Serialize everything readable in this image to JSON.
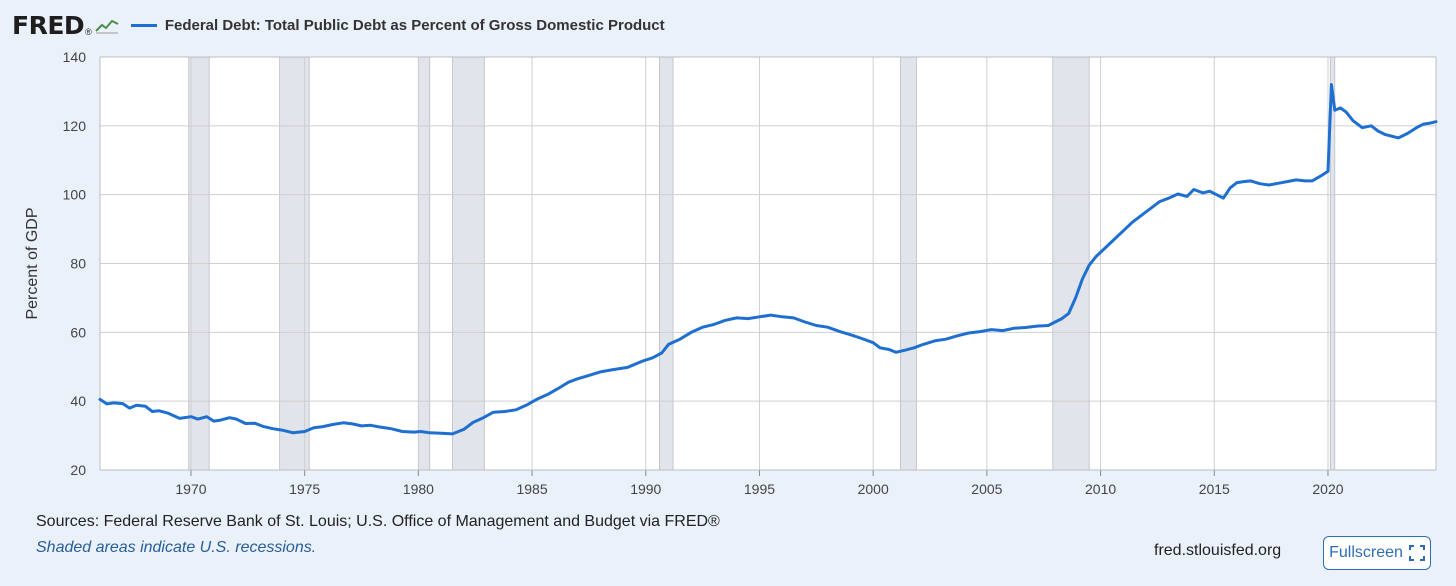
{
  "header": {
    "logo_text": "FRED",
    "logo_mark": "®",
    "legend_label": "Federal Debt: Total Public Debt as Percent of Gross Domestic Product"
  },
  "footer": {
    "sources": "Sources: Federal Reserve Bank of St. Louis; U.S. Office of Management and Budget via FRED®",
    "note": "Shaded areas indicate U.S. recessions.",
    "site": "fred.stlouisfed.org",
    "fullscreen_label": "Fullscreen",
    "fullscreen_icon": "expand-icon"
  },
  "colors": {
    "series": "#1f6fd1",
    "recession": "#e1e4ea",
    "grid": "#cfcfcf",
    "plot_bg": "#ffffff",
    "page_bg": "#eaf1fa"
  },
  "chart_data": {
    "type": "line",
    "title": "Federal Debt: Total Public Debt as Percent of Gross Domestic Product",
    "ylabel": "Percent of GDP",
    "xlabel": "",
    "xlim": [
      1966,
      2024.75
    ],
    "ylim": [
      20,
      140
    ],
    "yticks": [
      20,
      40,
      60,
      80,
      100,
      120,
      140
    ],
    "xticks": [
      1970,
      1975,
      1980,
      1985,
      1990,
      1995,
      2000,
      2005,
      2010,
      2015,
      2020
    ],
    "grid": true,
    "recessions": [
      [
        1969.9,
        1970.8
      ],
      [
        1973.9,
        1975.2
      ],
      [
        1980.0,
        1980.5
      ],
      [
        1981.5,
        1982.9
      ],
      [
        1990.6,
        1991.2
      ],
      [
        2001.2,
        2001.9
      ],
      [
        2007.9,
        2009.5
      ],
      [
        2020.1,
        2020.3
      ]
    ],
    "series": [
      {
        "name": "Federal Debt: Total Public Debt as Percent of Gross Domestic Product",
        "x": [
          1966.0,
          1966.3,
          1966.6,
          1967.0,
          1967.3,
          1967.6,
          1968.0,
          1968.3,
          1968.6,
          1969.0,
          1969.5,
          1970.0,
          1970.3,
          1970.7,
          1971.0,
          1971.3,
          1971.7,
          1972.0,
          1972.4,
          1972.8,
          1973.2,
          1973.6,
          1974.0,
          1974.5,
          1975.0,
          1975.4,
          1975.8,
          1976.2,
          1976.7,
          1977.1,
          1977.5,
          1977.9,
          1978.3,
          1978.8,
          1979.3,
          1979.8,
          1980.1,
          1980.5,
          1981.0,
          1981.5,
          1982.0,
          1982.4,
          1982.8,
          1983.3,
          1983.8,
          1984.3,
          1984.8,
          1985.2,
          1985.7,
          1986.1,
          1986.6,
          1987.0,
          1987.5,
          1988.0,
          1988.6,
          1989.2,
          1989.8,
          1990.3,
          1990.7,
          1991.0,
          1991.5,
          1992.0,
          1992.5,
          1993.0,
          1993.5,
          1994.0,
          1994.5,
          1995.0,
          1995.5,
          1996.0,
          1996.5,
          1997.0,
          1997.5,
          1998.0,
          1998.5,
          1999.0,
          1999.5,
          2000.0,
          2000.3,
          2000.7,
          2001.0,
          2001.4,
          2001.8,
          2002.2,
          2002.7,
          2003.2,
          2003.7,
          2004.2,
          2004.7,
          2005.2,
          2005.7,
          2006.2,
          2006.7,
          2007.2,
          2007.7,
          2008.0,
          2008.3,
          2008.6,
          2008.9,
          2009.2,
          2009.5,
          2009.8,
          2010.2,
          2010.6,
          2011.0,
          2011.4,
          2011.8,
          2012.2,
          2012.6,
          2013.0,
          2013.4,
          2013.8,
          2014.1,
          2014.5,
          2014.8,
          2015.1,
          2015.4,
          2015.7,
          2016.0,
          2016.3,
          2016.6,
          2017.0,
          2017.4,
          2017.8,
          2018.2,
          2018.6,
          2019.0,
          2019.3,
          2019.7,
          2020.0,
          2020.15,
          2020.3,
          2020.55,
          2020.8,
          2021.1,
          2021.5,
          2021.9,
          2022.2,
          2022.5,
          2022.8,
          2023.1,
          2023.5,
          2023.9,
          2024.2,
          2024.5,
          2024.75
        ],
        "y": [
          40.5,
          39.2,
          39.5,
          39.3,
          38.0,
          38.8,
          38.5,
          37.0,
          37.2,
          36.5,
          35.0,
          35.5,
          34.8,
          35.5,
          34.2,
          34.5,
          35.2,
          34.8,
          33.5,
          33.6,
          32.6,
          32.0,
          31.6,
          30.8,
          31.2,
          32.3,
          32.6,
          33.2,
          33.7,
          33.4,
          32.8,
          33.0,
          32.5,
          32.0,
          31.2,
          31.0,
          31.2,
          30.8,
          30.7,
          30.5,
          31.8,
          33.8,
          35.0,
          36.8,
          37.0,
          37.5,
          39.0,
          40.5,
          42.0,
          43.5,
          45.5,
          46.5,
          47.5,
          48.5,
          49.2,
          49.8,
          51.5,
          52.6,
          54.0,
          56.5,
          58.0,
          60.0,
          61.5,
          62.3,
          63.5,
          64.2,
          64.0,
          64.5,
          65.0,
          64.5,
          64.2,
          63.0,
          62.0,
          61.5,
          60.3,
          59.3,
          58.2,
          57.0,
          55.5,
          55.0,
          54.2,
          54.8,
          55.5,
          56.5,
          57.5,
          58.0,
          59.0,
          59.8,
          60.2,
          60.8,
          60.5,
          61.2,
          61.4,
          61.8,
          62.0,
          63.0,
          64.0,
          65.5,
          70.0,
          75.5,
          79.5,
          82.0,
          84.5,
          87.0,
          89.5,
          92.0,
          94.0,
          96.0,
          98.0,
          99.0,
          100.2,
          99.5,
          101.5,
          100.5,
          101.0,
          100.0,
          99.0,
          102.0,
          103.5,
          103.8,
          104.0,
          103.2,
          102.8,
          103.3,
          103.8,
          104.3,
          104.0,
          104.0,
          105.5,
          106.8,
          132.0,
          124.5,
          125.2,
          124.0,
          121.5,
          119.5,
          120.0,
          118.5,
          117.5,
          117.0,
          116.5,
          117.8,
          119.5,
          120.5,
          120.8,
          121.2
        ]
      }
    ]
  }
}
